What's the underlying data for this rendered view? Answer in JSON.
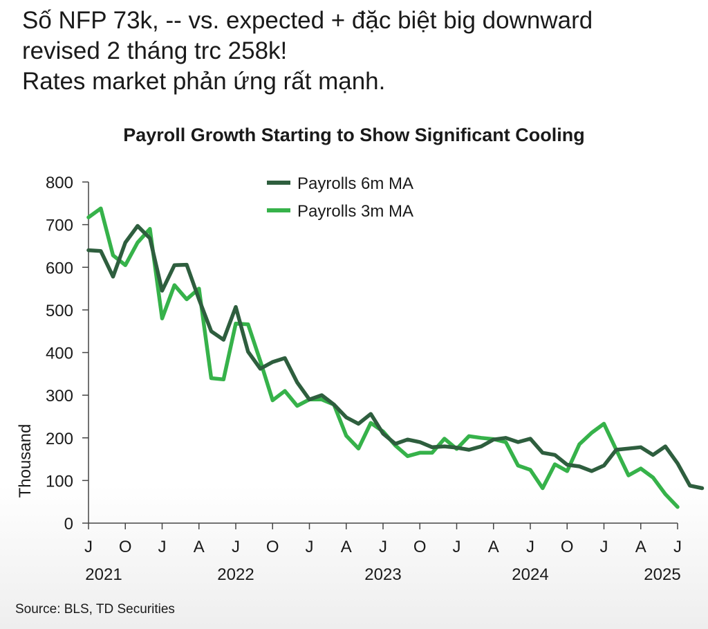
{
  "post": {
    "lines": [
      "Số NFP 73k, -- vs. expected + đặc biệt big downward",
      "revised 2 tháng trc 258k!",
      "Rates market phản ứng rất mạnh."
    ]
  },
  "chart_data": {
    "type": "line",
    "title": "Payroll Growth Starting to Show Significant Cooling",
    "xlabel": "",
    "ylabel": "Thousand",
    "ylim": [
      0,
      800
    ],
    "yticks": [
      0,
      100,
      200,
      300,
      400,
      500,
      600,
      700,
      800
    ],
    "x_months_start": "2021-07",
    "x_tick_labels": [
      "J",
      "O",
      "J",
      "A",
      "J",
      "O",
      "J",
      "A",
      "J",
      "O",
      "J",
      "A",
      "J",
      "O",
      "J",
      "A",
      "J"
    ],
    "x_year_labels": [
      "2021",
      "2022",
      "2023",
      "2024",
      "2025"
    ],
    "source": "Source: BLS, TD Securities",
    "series": [
      {
        "name": "Payrolls 6m MA",
        "color": "#2e5e3e",
        "values": [
          640,
          638,
          578,
          658,
          697,
          668,
          545,
          605,
          606,
          525,
          450,
          430,
          507,
          402,
          362,
          378,
          387,
          330,
          290,
          300,
          278,
          248,
          233,
          256,
          210,
          186,
          196,
          190,
          178,
          180,
          177,
          172,
          180,
          196,
          200,
          190,
          198,
          165,
          160,
          137,
          133,
          122,
          135,
          172,
          175,
          178,
          160,
          180,
          140,
          88,
          82
        ]
      },
      {
        "name": "Payrolls 3m MA",
        "color": "#36b24a",
        "values": [
          717,
          738,
          628,
          605,
          658,
          690,
          480,
          558,
          525,
          550,
          340,
          337,
          468,
          466,
          380,
          288,
          310,
          275,
          290,
          290,
          278,
          205,
          175,
          235,
          215,
          182,
          157,
          165,
          165,
          198,
          174,
          204,
          200,
          197,
          190,
          135,
          125,
          82,
          138,
          122,
          185,
          212,
          233,
          172,
          112,
          128,
          107,
          68,
          38
        ]
      }
    ]
  }
}
